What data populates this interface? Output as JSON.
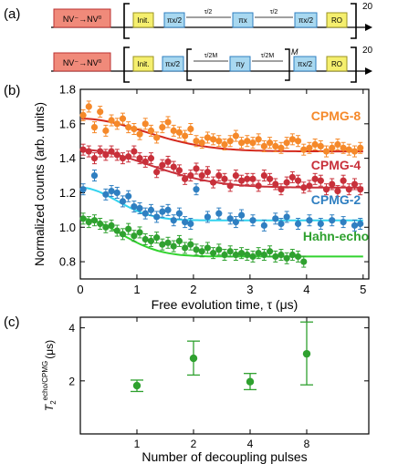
{
  "panels": {
    "a": "(a)",
    "b": "(b)",
    "c": "(c)"
  },
  "sequence": {
    "row1": {
      "init_state": "NV⁻→NV⁰",
      "blocks": [
        "Init.",
        "πx/2",
        "πx",
        "πx/2",
        "RO"
      ],
      "intervals": [
        "τ/2",
        "τ/2"
      ],
      "repeat": "20"
    },
    "row2": {
      "init_state": "NV⁻→NV⁰",
      "blocks": [
        "Init.",
        "πx/2",
        "πy",
        "πx/2",
        "RO"
      ],
      "intervals": [
        "τ/2M",
        "τ/2M"
      ],
      "inner_repeat": "M",
      "repeat": "20"
    },
    "colors": {
      "init_block": "#f5ef6e",
      "pulse_block": "#a8d8f0",
      "ro_block": "#f5ef6e"
    }
  },
  "chart_data": [
    {
      "type": "scatter",
      "panel": "b",
      "xlabel": "Free evolution time, τ (μs)",
      "ylabel": "Normalized counts (arb. units)",
      "xlim": [
        0,
        5.1
      ],
      "ylim": [
        0.7,
        1.8
      ],
      "xticks": [
        0,
        1,
        2,
        3,
        4,
        5
      ],
      "yticks": [
        0.8,
        1.0,
        1.2,
        1.4,
        1.6,
        1.8
      ],
      "series": [
        {
          "name": "CPMG-8",
          "color": "#f5892a",
          "fit_color": "#d42a1e",
          "x": [
            0.05,
            0.15,
            0.25,
            0.35,
            0.45,
            0.55,
            0.65,
            0.75,
            0.85,
            0.95,
            1.05,
            1.15,
            1.25,
            1.35,
            1.45,
            1.55,
            1.65,
            1.75,
            1.85,
            1.95,
            2.05,
            2.15,
            2.25,
            2.35,
            2.45,
            2.55,
            2.65,
            2.75,
            2.85,
            2.95,
            3.05,
            3.15,
            3.25,
            3.35,
            3.45,
            3.55,
            3.65,
            3.75,
            3.85,
            3.95,
            4.05,
            4.15,
            4.25,
            4.35,
            4.45,
            4.55,
            4.65,
            4.75,
            4.85,
            4.95
          ],
          "y": [
            1.65,
            1.7,
            1.58,
            1.67,
            1.56,
            1.62,
            1.6,
            1.63,
            1.58,
            1.57,
            1.54,
            1.6,
            1.56,
            1.52,
            1.58,
            1.61,
            1.56,
            1.55,
            1.53,
            1.57,
            1.5,
            1.49,
            1.52,
            1.51,
            1.5,
            1.48,
            1.5,
            1.53,
            1.49,
            1.5,
            1.49,
            1.51,
            1.47,
            1.49,
            1.47,
            1.46,
            1.49,
            1.51,
            1.5,
            1.45,
            1.46,
            1.48,
            1.47,
            1.44,
            1.46,
            1.48,
            1.46,
            1.45,
            1.44,
            1.46
          ],
          "fit": {
            "a": 0.19,
            "T": 1.6,
            "c": 1.44
          }
        },
        {
          "name": "CPMG-4",
          "color": "#c8303a",
          "fit_color": "#c8303a",
          "x": [
            0.05,
            0.15,
            0.25,
            0.35,
            0.45,
            0.55,
            0.65,
            0.75,
            0.85,
            0.95,
            1.05,
            1.15,
            1.25,
            1.35,
            1.45,
            1.55,
            1.65,
            1.75,
            1.85,
            1.95,
            2.05,
            2.15,
            2.25,
            2.35,
            2.45,
            2.55,
            2.65,
            2.75,
            2.85,
            2.95,
            3.05,
            3.15,
            3.25,
            3.35,
            3.45,
            3.55,
            3.65,
            3.75,
            3.85,
            3.95,
            4.05,
            4.15,
            4.25,
            4.35,
            4.45,
            4.55,
            4.65,
            4.75,
            4.85,
            4.95
          ],
          "y": [
            1.45,
            1.44,
            1.4,
            1.44,
            1.42,
            1.44,
            1.42,
            1.4,
            1.41,
            1.44,
            1.4,
            1.38,
            1.4,
            1.32,
            1.36,
            1.38,
            1.35,
            1.33,
            1.28,
            1.3,
            1.34,
            1.3,
            1.32,
            1.26,
            1.3,
            1.28,
            1.24,
            1.3,
            1.27,
            1.28,
            1.28,
            1.24,
            1.3,
            1.28,
            1.25,
            1.22,
            1.26,
            1.29,
            1.27,
            1.23,
            1.24,
            1.28,
            1.27,
            1.22,
            1.25,
            1.21,
            1.27,
            1.22,
            1.25,
            1.22
          ],
          "fit": {
            "a": 0.22,
            "T": 1.7,
            "c": 1.23
          }
        },
        {
          "name": "CPMG-2",
          "color": "#2f7fc1",
          "fit_color": "#33d3ef",
          "x": [
            0.05,
            0.25,
            0.45,
            0.55,
            0.65,
            0.75,
            0.85,
            0.95,
            1.05,
            1.15,
            1.25,
            1.35,
            1.45,
            1.55,
            1.65,
            1.75,
            1.85,
            1.95,
            2.05,
            2.25,
            2.45,
            2.65,
            2.75,
            2.85,
            3.05,
            3.25,
            3.45,
            3.55,
            3.65,
            3.85,
            4.05,
            4.25,
            4.45,
            4.65,
            4.85,
            4.95
          ],
          "y": [
            1.22,
            1.3,
            1.19,
            1.21,
            1.2,
            1.15,
            1.18,
            1.12,
            1.11,
            1.08,
            1.1,
            1.06,
            1.09,
            1.1,
            1.04,
            1.08,
            1.03,
            1.02,
            1.22,
            1.06,
            1.08,
            1.05,
            1.03,
            1.07,
            1.04,
            1.01,
            1.05,
            1.02,
            1.06,
            1.02,
            1.04,
            1.02,
            1.04,
            1.03,
            1.01,
            1.02
          ],
          "fit": {
            "a": 0.19,
            "T": 0.9,
            "c": 1.04
          }
        },
        {
          "name": "Hahn-echo",
          "color": "#2fa12f",
          "fit_color": "#31d32e",
          "x": [
            0.05,
            0.15,
            0.25,
            0.35,
            0.45,
            0.55,
            0.65,
            0.75,
            0.85,
            0.95,
            1.05,
            1.15,
            1.25,
            1.35,
            1.45,
            1.55,
            1.65,
            1.75,
            1.85,
            1.95,
            2.05,
            2.15,
            2.25,
            2.35,
            2.45,
            2.55,
            2.65,
            2.75,
            2.85,
            2.95,
            3.05,
            3.15,
            3.25,
            3.35,
            3.45,
            3.55,
            3.65,
            3.75,
            3.85,
            3.95
          ],
          "y": [
            1.05,
            1.03,
            1.04,
            1.02,
            1.0,
            1.01,
            0.98,
            0.96,
            0.99,
            0.95,
            0.97,
            0.93,
            0.92,
            0.94,
            0.9,
            0.91,
            0.89,
            0.92,
            0.88,
            0.9,
            0.87,
            0.86,
            0.88,
            0.85,
            0.87,
            0.84,
            0.86,
            0.84,
            0.85,
            0.84,
            0.83,
            0.85,
            0.84,
            0.86,
            0.83,
            0.84,
            0.82,
            0.84,
            0.83,
            0.8
          ],
          "fit": {
            "a": 0.22,
            "T": 1.0,
            "c": 0.83
          }
        }
      ]
    },
    {
      "type": "scatter",
      "panel": "c",
      "xlabel": "Number of decoupling pulses",
      "ylabel": "T₂ echo/CPMG (μs)",
      "ylabel_main": "T",
      "ylabel_sub": "2",
      "ylabel_sup": "echo/CPMG",
      "ylabel_unit": "(μs)",
      "categories": [
        "1",
        "2",
        "4",
        "8"
      ],
      "ylim": [
        0,
        4.4
      ],
      "yticks": [
        2,
        4
      ],
      "color": "#2fa12f",
      "values": [
        1.82,
        2.85,
        1.97,
        3.02
      ],
      "err_low": [
        1.6,
        2.22,
        1.67,
        1.85
      ],
      "err_high": [
        2.03,
        3.5,
        2.28,
        4.22
      ]
    }
  ]
}
